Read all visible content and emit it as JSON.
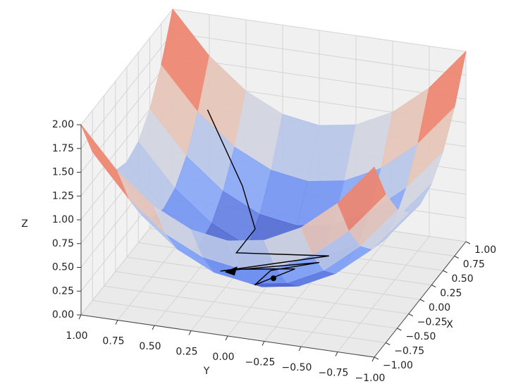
{
  "chart_data": {
    "type": "surface3d",
    "colormap": "coolwarm",
    "xlabel": "X",
    "ylabel": "Y",
    "zlabel": "Z",
    "xlim": [
      -1,
      1
    ],
    "ylim": [
      -1,
      1
    ],
    "zlim": [
      0,
      2
    ],
    "xticks": [
      {
        "value": -1,
        "label": "−1.00"
      },
      {
        "value": -0.75,
        "label": "−0.75"
      },
      {
        "value": -0.5,
        "label": "−0.50"
      },
      {
        "value": -0.25,
        "label": "−0.25"
      },
      {
        "value": 0,
        "label": "0.00"
      },
      {
        "value": 0.25,
        "label": "0.25"
      },
      {
        "value": 0.5,
        "label": "0.50"
      },
      {
        "value": 0.75,
        "label": "0.75"
      },
      {
        "value": 1,
        "label": "1.00"
      }
    ],
    "yticks": [
      {
        "value": -1,
        "label": "−1.00"
      },
      {
        "value": -0.75,
        "label": "−0.75"
      },
      {
        "value": -0.5,
        "label": "−0.50"
      },
      {
        "value": -0.25,
        "label": "−0.25"
      },
      {
        "value": 0,
        "label": "0.00"
      },
      {
        "value": 0.25,
        "label": "0.25"
      },
      {
        "value": 0.5,
        "label": "0.50"
      },
      {
        "value": 0.75,
        "label": "0.75"
      },
      {
        "value": 1,
        "label": "1.00"
      }
    ],
    "zticks": [
      {
        "value": 0,
        "label": "0.00"
      },
      {
        "value": 0.25,
        "label": "0.25"
      },
      {
        "value": 0.5,
        "label": "0.50"
      },
      {
        "value": 0.75,
        "label": "0.75"
      },
      {
        "value": 1,
        "label": "1.00"
      },
      {
        "value": 1.25,
        "label": "1.25"
      },
      {
        "value": 1.5,
        "label": "1.50"
      },
      {
        "value": 1.75,
        "label": "1.75"
      },
      {
        "value": 2,
        "label": "2.00"
      }
    ],
    "grid": true,
    "surface": {
      "x": [
        -1,
        -0.75,
        -0.5,
        -0.25,
        0,
        0.25,
        0.5,
        0.75,
        1
      ],
      "y": [
        -1,
        -0.75,
        -0.5,
        -0.25,
        0,
        0.25,
        0.5,
        0.75,
        1
      ],
      "z": [
        [
          2,
          1.5625,
          1.25,
          1.0625,
          1,
          1.0625,
          1.25,
          1.5625,
          2
        ],
        [
          1.5625,
          1.125,
          0.8125,
          0.625,
          0.5625,
          0.625,
          0.8125,
          1.125,
          1.5625
        ],
        [
          1.25,
          0.8125,
          0.5,
          0.3125,
          0.25,
          0.3125,
          0.5,
          0.8125,
          1.25
        ],
        [
          1.0625,
          0.625,
          0.3125,
          0.125,
          0.0625,
          0.125,
          0.3125,
          0.625,
          1.0625
        ],
        [
          1,
          0.5625,
          0.25,
          0.0625,
          0,
          0.0625,
          0.25,
          0.5625,
          1
        ],
        [
          1.0625,
          0.625,
          0.3125,
          0.125,
          0.0625,
          0.125,
          0.3125,
          0.625,
          1.0625
        ],
        [
          1.25,
          0.8125,
          0.5,
          0.3125,
          0.25,
          0.3125,
          0.5,
          0.8125,
          1.25
        ],
        [
          1.5625,
          1.125,
          0.8125,
          0.625,
          0.5625,
          0.625,
          0.8125,
          1.125,
          1.5625
        ],
        [
          2,
          1.5625,
          1.25,
          1.0625,
          1,
          1.0625,
          1.25,
          1.5625,
          2
        ]
      ]
    },
    "path": {
      "color": "#000000",
      "x": [
        0.8,
        0.6,
        0.4,
        0.15,
        0.25,
        -0.2,
        0.2,
        0.1,
        -0.25,
        0.15,
        -0.05
      ],
      "y": [
        0.7,
        0.4,
        0.25,
        0.3,
        -0.3,
        0.3,
        -0.25,
        0.05,
        0.05,
        -0.1,
        0.25
      ],
      "z": [
        1.13,
        0.52,
        0.22,
        0.11,
        0.15,
        0.13,
        0.1,
        0.01,
        0.07,
        0.03,
        0.07
      ]
    },
    "point": {
      "x": 0,
      "y": 0,
      "z": 0,
      "color": "#000000"
    }
  }
}
